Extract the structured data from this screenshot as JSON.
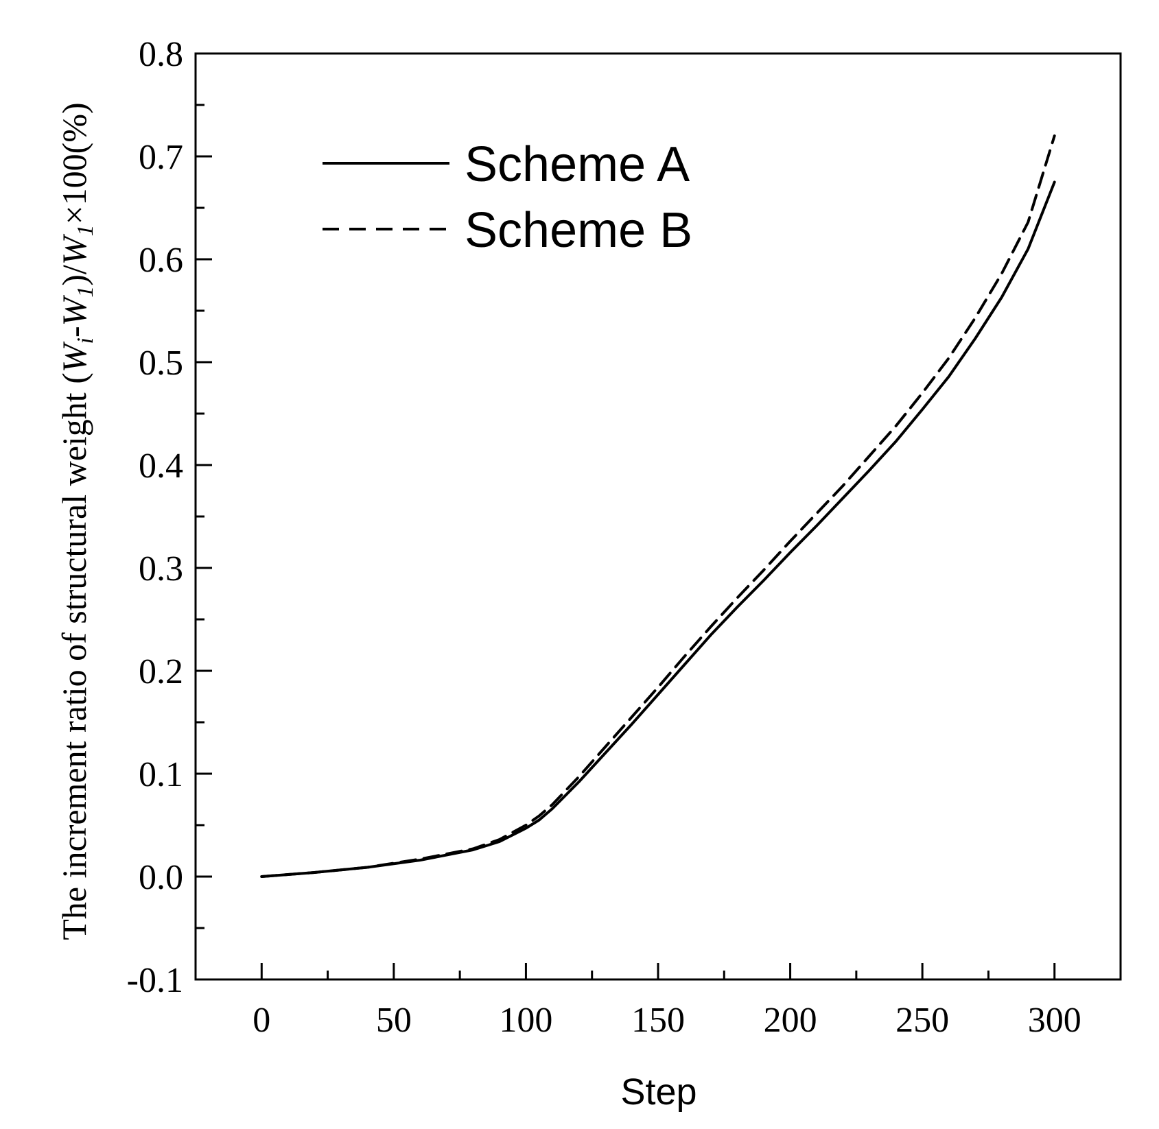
{
  "chart_data": {
    "type": "line",
    "xlabel": "Step",
    "ylabel": "The increment ratio of structural weight (W_i-W_1)/W_1×100(%)",
    "ylabel_parts": {
      "prefix": "The increment ratio of structural weight (",
      "w": "W",
      "sub_i": "i",
      "minus": "-",
      "sub_1": "1",
      "close_div": ")/",
      "suffix": "×100(%)"
    },
    "xlim": [
      -25,
      325
    ],
    "ylim": [
      -0.1,
      0.8
    ],
    "xticks": [
      0,
      50,
      100,
      150,
      200,
      250,
      300
    ],
    "xtick_labels": [
      "0",
      "50",
      "100",
      "150",
      "200",
      "250",
      "300"
    ],
    "yticks": [
      -0.1,
      0.0,
      0.1,
      0.2,
      0.3,
      0.4,
      0.5,
      0.6,
      0.7,
      0.8
    ],
    "ytick_labels": [
      "-0.1",
      "0.0",
      "0.1",
      "0.2",
      "0.3",
      "0.4",
      "0.5",
      "0.6",
      "0.7",
      "0.8"
    ],
    "grid": false,
    "legend_position": "top-left",
    "series": [
      {
        "name": "Scheme A",
        "style": "solid",
        "color": "#000000",
        "x": [
          0,
          20,
          40,
          60,
          80,
          90,
          100,
          105,
          110,
          120,
          130,
          140,
          150,
          160,
          170,
          180,
          190,
          200,
          210,
          220,
          230,
          240,
          250,
          260,
          270,
          280,
          290,
          300
        ],
        "y": [
          0.0,
          0.004,
          0.009,
          0.016,
          0.026,
          0.034,
          0.047,
          0.055,
          0.066,
          0.092,
          0.12,
          0.148,
          0.177,
          0.206,
          0.235,
          0.262,
          0.288,
          0.315,
          0.341,
          0.368,
          0.395,
          0.423,
          0.454,
          0.486,
          0.523,
          0.563,
          0.61,
          0.675
        ]
      },
      {
        "name": "Scheme B",
        "style": "dashed",
        "color": "#000000",
        "x": [
          0,
          20,
          40,
          60,
          80,
          90,
          100,
          105,
          110,
          120,
          130,
          140,
          150,
          160,
          170,
          180,
          190,
          200,
          210,
          220,
          230,
          240,
          250,
          260,
          270,
          280,
          290,
          300
        ],
        "y": [
          0.0,
          0.004,
          0.009,
          0.017,
          0.027,
          0.036,
          0.05,
          0.059,
          0.07,
          0.097,
          0.126,
          0.155,
          0.184,
          0.214,
          0.243,
          0.271,
          0.298,
          0.326,
          0.353,
          0.38,
          0.409,
          0.438,
          0.47,
          0.504,
          0.543,
          0.586,
          0.636,
          0.72
        ]
      }
    ]
  }
}
